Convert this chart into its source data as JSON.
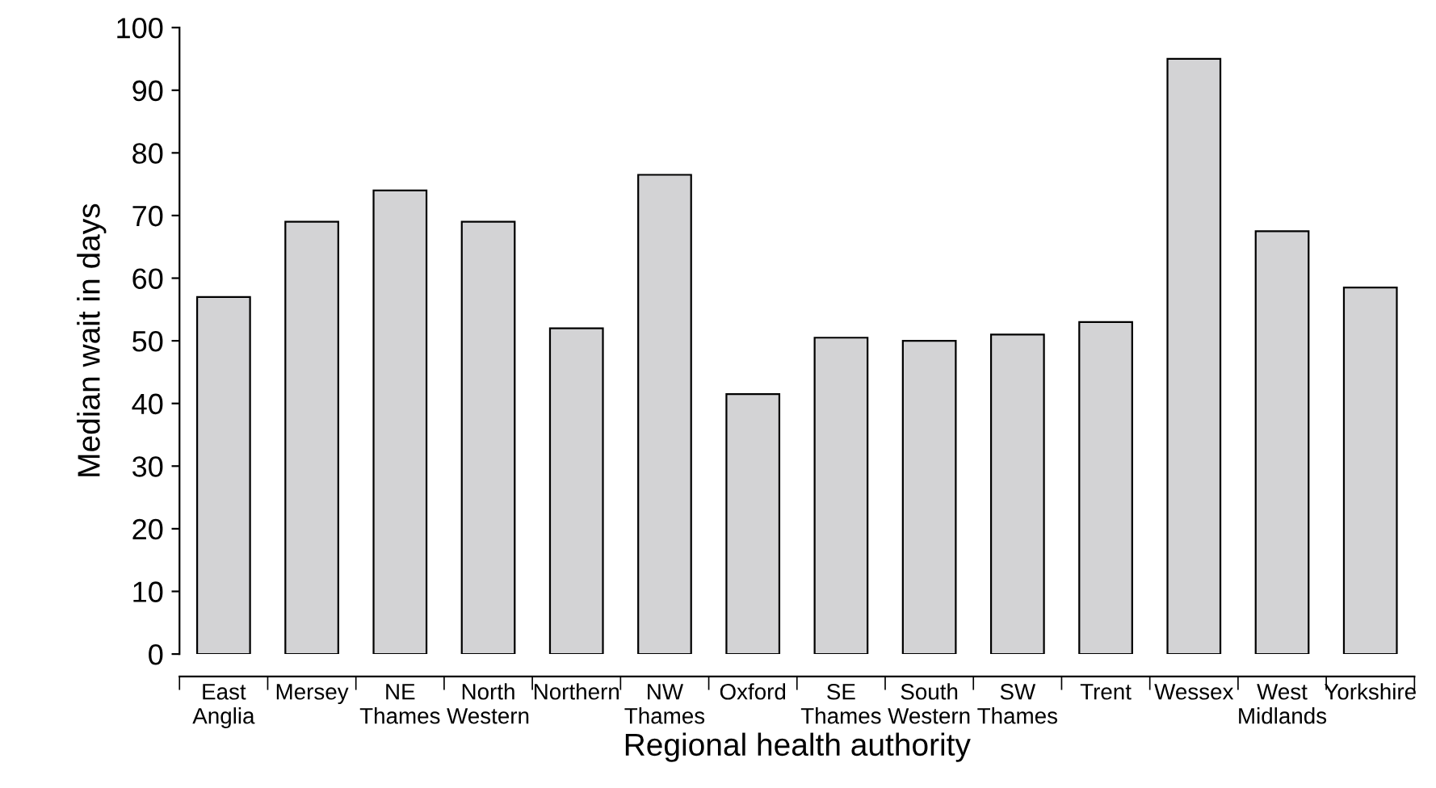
{
  "chart_data": {
    "type": "bar",
    "categories": [
      "East\nAnglia",
      "Mersey",
      "NE\nThames",
      "North\nWestern",
      "Northern",
      "NW\nThames",
      "Oxford",
      "SE\nThames",
      "South\nWestern",
      "SW\nThames",
      "Trent",
      "Wessex",
      "West\nMidlands",
      "Yorkshire"
    ],
    "values": [
      57,
      69,
      74,
      69,
      52,
      76.5,
      41.5,
      50.5,
      50,
      51,
      53,
      95,
      67.5,
      58.5
    ],
    "color": "#d3d3d5",
    "xlabel": "Regional health authority",
    "ylabel": "Median wait in days",
    "ylim": [
      0,
      100
    ],
    "yticks": [
      0,
      10,
      20,
      30,
      40,
      50,
      60,
      70,
      80,
      90,
      100
    ],
    "grid": false
  }
}
